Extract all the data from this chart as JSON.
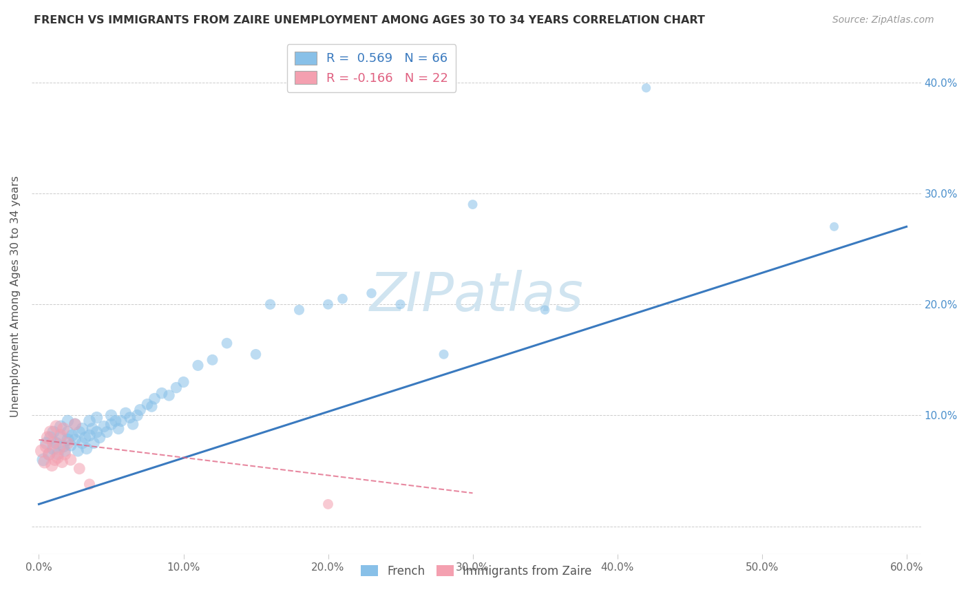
{
  "title": "FRENCH VS IMMIGRANTS FROM ZAIRE UNEMPLOYMENT AMONG AGES 30 TO 34 YEARS CORRELATION CHART",
  "source": "Source: ZipAtlas.com",
  "ylabel": "Unemployment Among Ages 30 to 34 years",
  "xlim": [
    -0.005,
    0.61
  ],
  "ylim": [
    -0.025,
    0.44
  ],
  "xticks": [
    0.0,
    0.1,
    0.2,
    0.3,
    0.4,
    0.5,
    0.6
  ],
  "yticks": [
    0.0,
    0.1,
    0.2,
    0.3,
    0.4
  ],
  "ytick_labels": [
    "",
    "10.0%",
    "20.0%",
    "30.0%",
    "40.0%"
  ],
  "xtick_labels": [
    "0.0%",
    "10.0%",
    "20.0%",
    "30.0%",
    "40.0%",
    "50.0%",
    "60.0%"
  ],
  "french_R": 0.569,
  "french_N": 66,
  "zaire_R": -0.166,
  "zaire_N": 22,
  "blue_color": "#88c0e8",
  "blue_line_color": "#3a7abf",
  "pink_color": "#f4a0b0",
  "pink_line_color": "#e06080",
  "watermark": "ZIPatlas",
  "watermark_color": "#d0e4f0",
  "background_color": "#ffffff",
  "french_x": [
    0.003,
    0.005,
    0.007,
    0.008,
    0.01,
    0.01,
    0.012,
    0.013,
    0.015,
    0.015,
    0.017,
    0.018,
    0.02,
    0.02,
    0.02,
    0.022,
    0.023,
    0.025,
    0.025,
    0.027,
    0.028,
    0.03,
    0.03,
    0.032,
    0.033,
    0.035,
    0.035,
    0.037,
    0.038,
    0.04,
    0.04,
    0.042,
    0.045,
    0.047,
    0.05,
    0.05,
    0.053,
    0.055,
    0.057,
    0.06,
    0.063,
    0.065,
    0.068,
    0.07,
    0.075,
    0.078,
    0.08,
    0.085,
    0.09,
    0.095,
    0.1,
    0.11,
    0.12,
    0.13,
    0.15,
    0.16,
    0.18,
    0.2,
    0.21,
    0.23,
    0.25,
    0.28,
    0.3,
    0.35,
    0.42,
    0.55
  ],
  "french_y": [
    0.06,
    0.075,
    0.065,
    0.08,
    0.07,
    0.085,
    0.075,
    0.065,
    0.08,
    0.09,
    0.072,
    0.068,
    0.078,
    0.085,
    0.095,
    0.073,
    0.082,
    0.078,
    0.092,
    0.068,
    0.085,
    0.075,
    0.088,
    0.08,
    0.07,
    0.082,
    0.095,
    0.088,
    0.075,
    0.085,
    0.098,
    0.08,
    0.09,
    0.085,
    0.092,
    0.1,
    0.095,
    0.088,
    0.095,
    0.102,
    0.098,
    0.092,
    0.1,
    0.105,
    0.11,
    0.108,
    0.115,
    0.12,
    0.118,
    0.125,
    0.13,
    0.145,
    0.15,
    0.165,
    0.155,
    0.2,
    0.195,
    0.2,
    0.205,
    0.21,
    0.2,
    0.155,
    0.29,
    0.195,
    0.395,
    0.27
  ],
  "french_sizes": [
    180,
    170,
    165,
    175,
    180,
    170,
    165,
    160,
    175,
    168,
    162,
    158,
    172,
    165,
    160,
    155,
    162,
    158,
    165,
    152,
    158,
    155,
    162,
    155,
    150,
    158,
    162,
    155,
    148,
    155,
    160,
    152,
    155,
    150,
    155,
    158,
    152,
    148,
    150,
    152,
    148,
    145,
    150,
    148,
    145,
    142,
    148,
    145,
    142,
    140,
    138,
    135,
    132,
    128,
    125,
    122,
    118,
    115,
    112,
    108,
    105,
    102,
    100,
    95,
    92,
    88
  ],
  "zaire_x": [
    0.002,
    0.004,
    0.005,
    0.006,
    0.007,
    0.008,
    0.009,
    0.01,
    0.011,
    0.012,
    0.013,
    0.014,
    0.015,
    0.016,
    0.017,
    0.018,
    0.02,
    0.022,
    0.025,
    0.028,
    0.035,
    0.2
  ],
  "zaire_y": [
    0.068,
    0.058,
    0.072,
    0.08,
    0.065,
    0.085,
    0.055,
    0.075,
    0.06,
    0.09,
    0.062,
    0.07,
    0.082,
    0.058,
    0.088,
    0.065,
    0.075,
    0.06,
    0.092,
    0.052,
    0.038,
    0.02
  ],
  "zaire_sizes": [
    195,
    185,
    178,
    182,
    175,
    180,
    170,
    178,
    168,
    175,
    165,
    170,
    175,
    162,
    172,
    165,
    162,
    155,
    158,
    148,
    135,
    115
  ],
  "french_line_x": [
    0.0,
    0.6
  ],
  "french_line_y": [
    0.02,
    0.27
  ],
  "zaire_line_x": [
    0.0,
    0.3
  ],
  "zaire_line_y": [
    0.078,
    0.03
  ]
}
